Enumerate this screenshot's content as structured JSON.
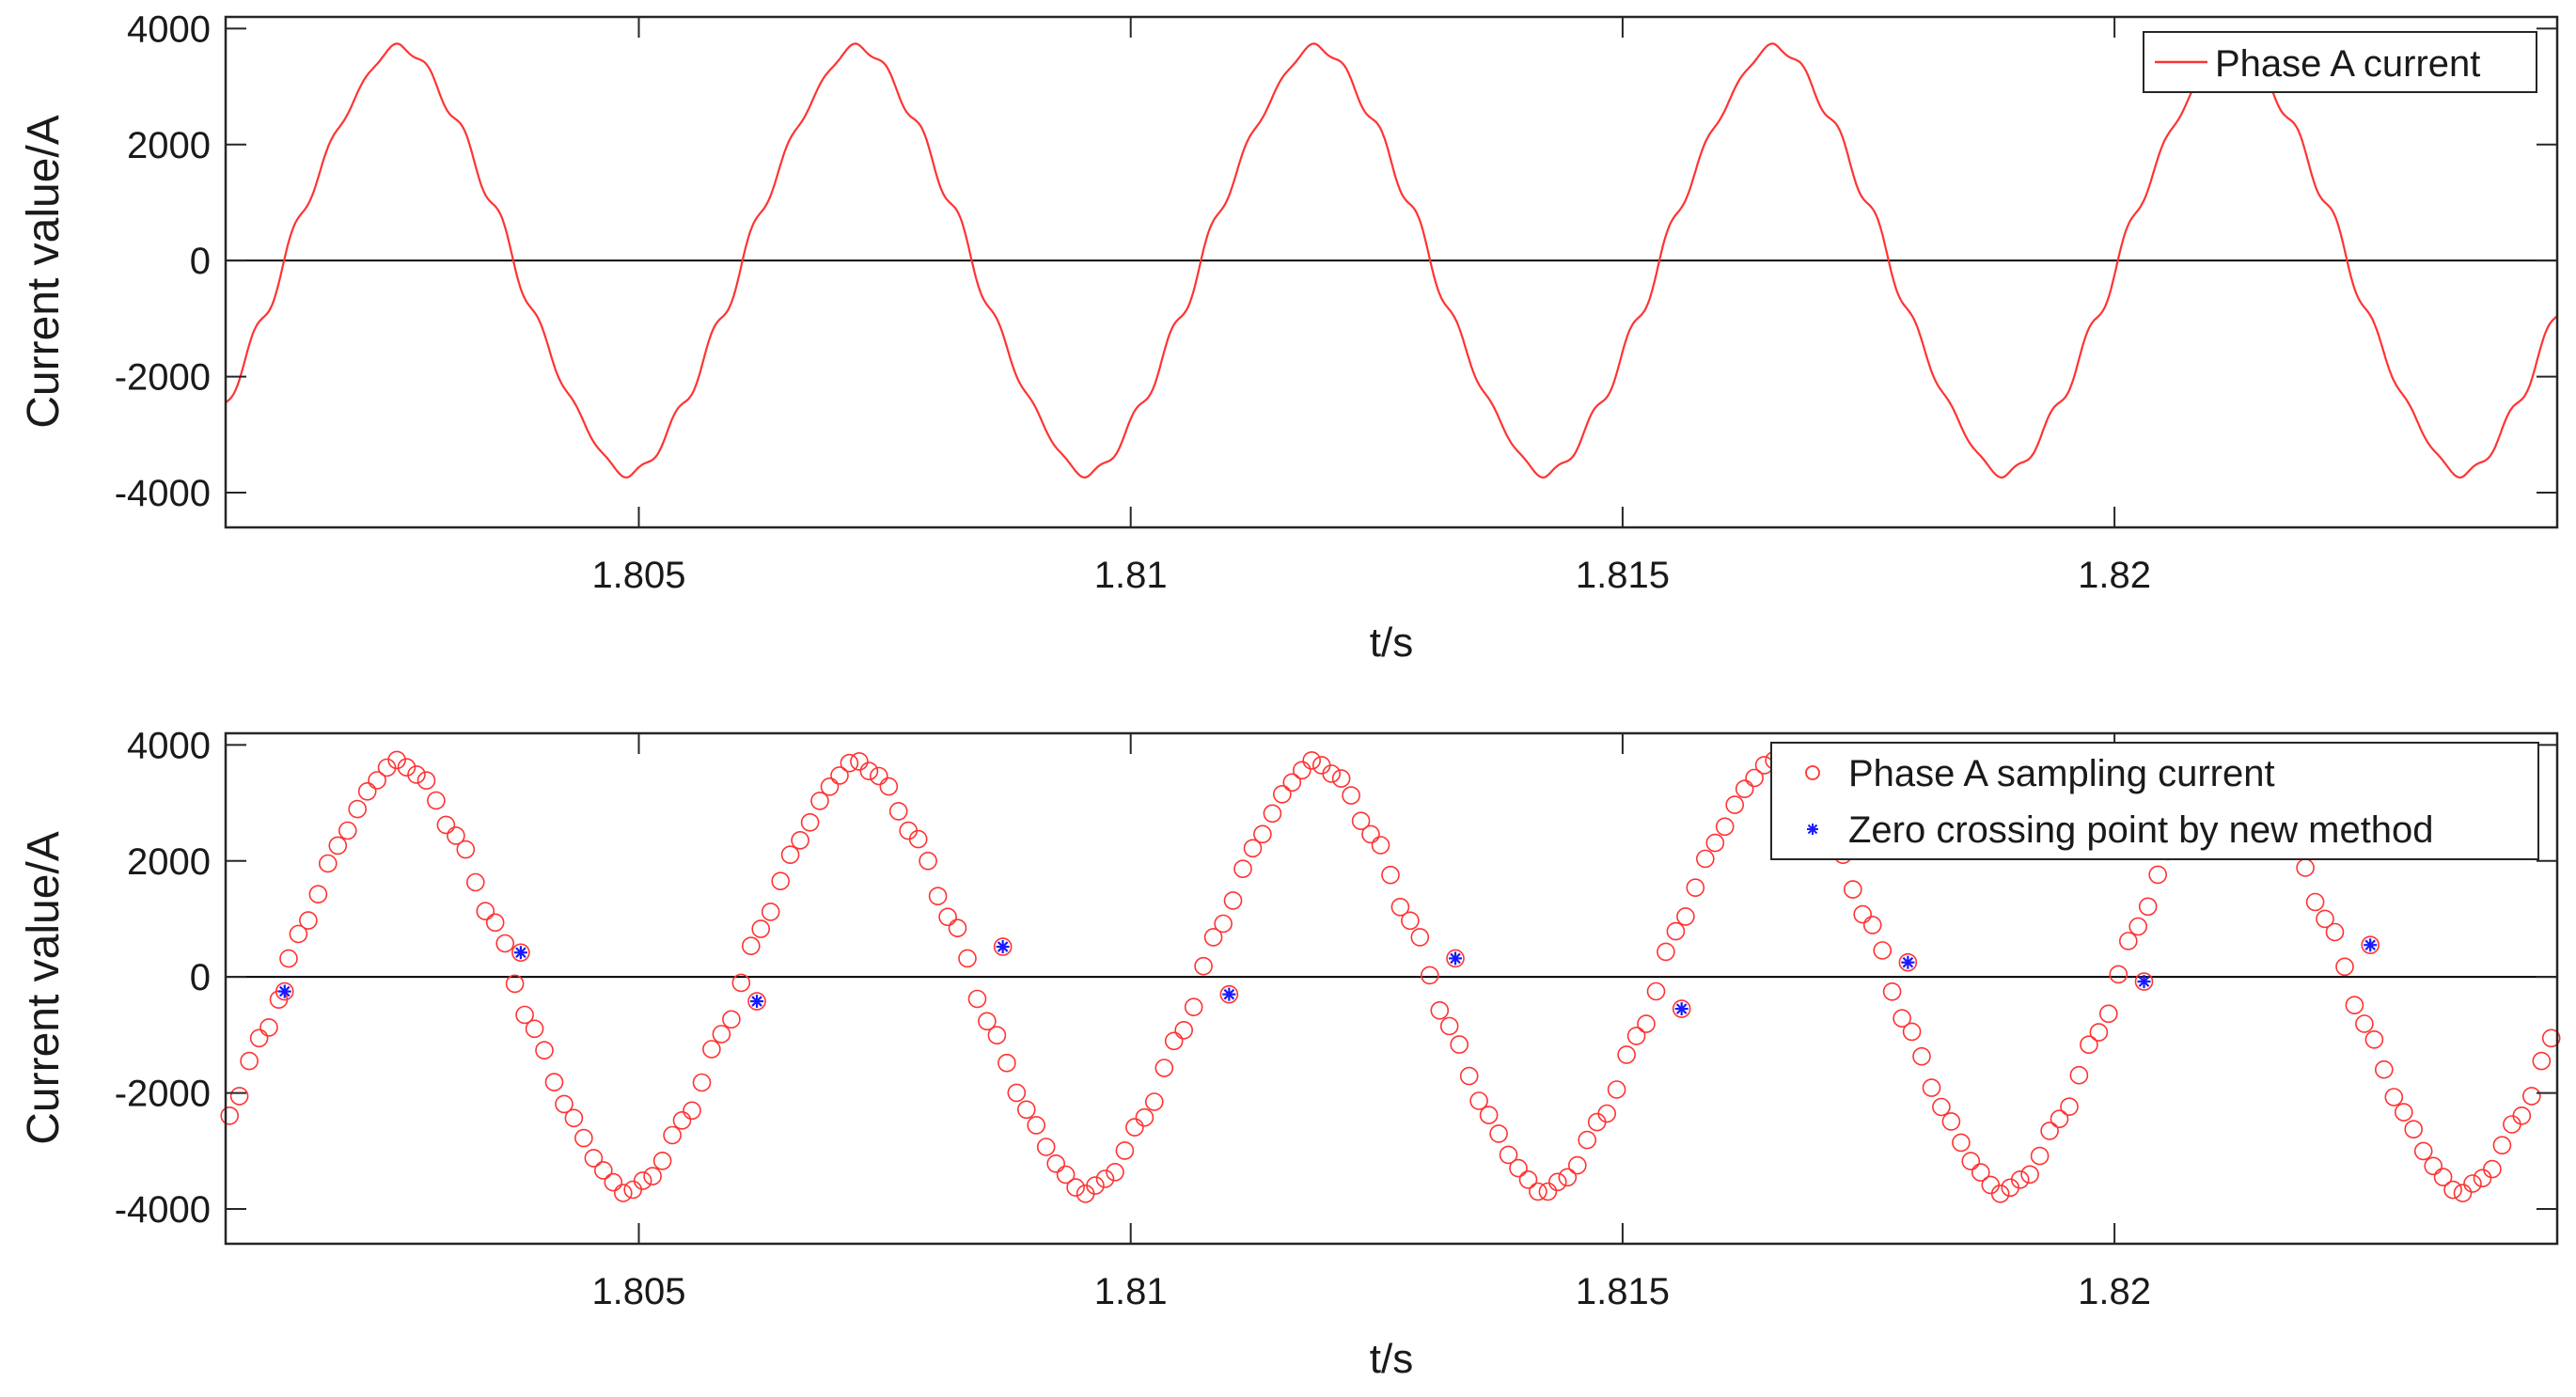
{
  "chart_data": [
    {
      "type": "line",
      "xlabel": "t/s",
      "ylabel": "Current value/A",
      "xlim": [
        1.8008,
        1.8245
      ],
      "ylim": [
        -4600,
        4200
      ],
      "x_ticks": [
        1.805,
        1.81,
        1.815,
        1.82
      ],
      "x_tick_labels": [
        "1.805",
        "1.81",
        "1.815",
        "1.82"
      ],
      "y_ticks": [
        -4000,
        -2000,
        0,
        2000,
        4000
      ],
      "y_tick_labels": [
        "-4000",
        "-2000",
        "0",
        "2000",
        "4000"
      ],
      "zero_line": true,
      "grid": false,
      "legend_position": "top-right",
      "series": [
        {
          "name": "Phase A current",
          "color": "#ff3333",
          "style": "line",
          "waveform": {
            "amplitude": 3520,
            "period": 0.00466,
            "positive_zero_crossing": 1.8014,
            "distortion": "harmonic ripple near zero crossings"
          }
        }
      ]
    },
    {
      "type": "scatter",
      "xlabel": "t/s",
      "ylabel": "Current value/A",
      "xlim": [
        1.8008,
        1.8245
      ],
      "ylim": [
        -4600,
        4200
      ],
      "x_ticks": [
        1.805,
        1.81,
        1.815,
        1.82
      ],
      "x_tick_labels": [
        "1.805",
        "1.81",
        "1.815",
        "1.82"
      ],
      "y_ticks": [
        -4000,
        -2000,
        0,
        2000,
        4000
      ],
      "y_tick_labels": [
        "-4000",
        "-2000",
        "0",
        "2000",
        "4000"
      ],
      "zero_line": true,
      "grid": false,
      "legend_position": "top-right",
      "series": [
        {
          "name": "Phase A sampling current",
          "color": "#ff3333",
          "marker": "circle",
          "sampling_interval": 0.0001,
          "waveform": {
            "amplitude": 3520,
            "period": 0.00466,
            "positive_zero_crossing": 1.8014
          }
        },
        {
          "name": "Zero crossing point by new method",
          "color": "#1a1aff",
          "marker": "star",
          "points": [
            {
              "x": 1.8014,
              "y": -250
            },
            {
              "x": 1.8038,
              "y": 420
            },
            {
              "x": 1.8062,
              "y": -420
            },
            {
              "x": 1.8087,
              "y": 520
            },
            {
              "x": 1.811,
              "y": -300
            },
            {
              "x": 1.8133,
              "y": 320
            },
            {
              "x": 1.8156,
              "y": -550
            },
            {
              "x": 1.8179,
              "y": 250
            },
            {
              "x": 1.8203,
              "y": -80
            },
            {
              "x": 1.8226,
              "y": 550
            }
          ]
        }
      ]
    }
  ]
}
